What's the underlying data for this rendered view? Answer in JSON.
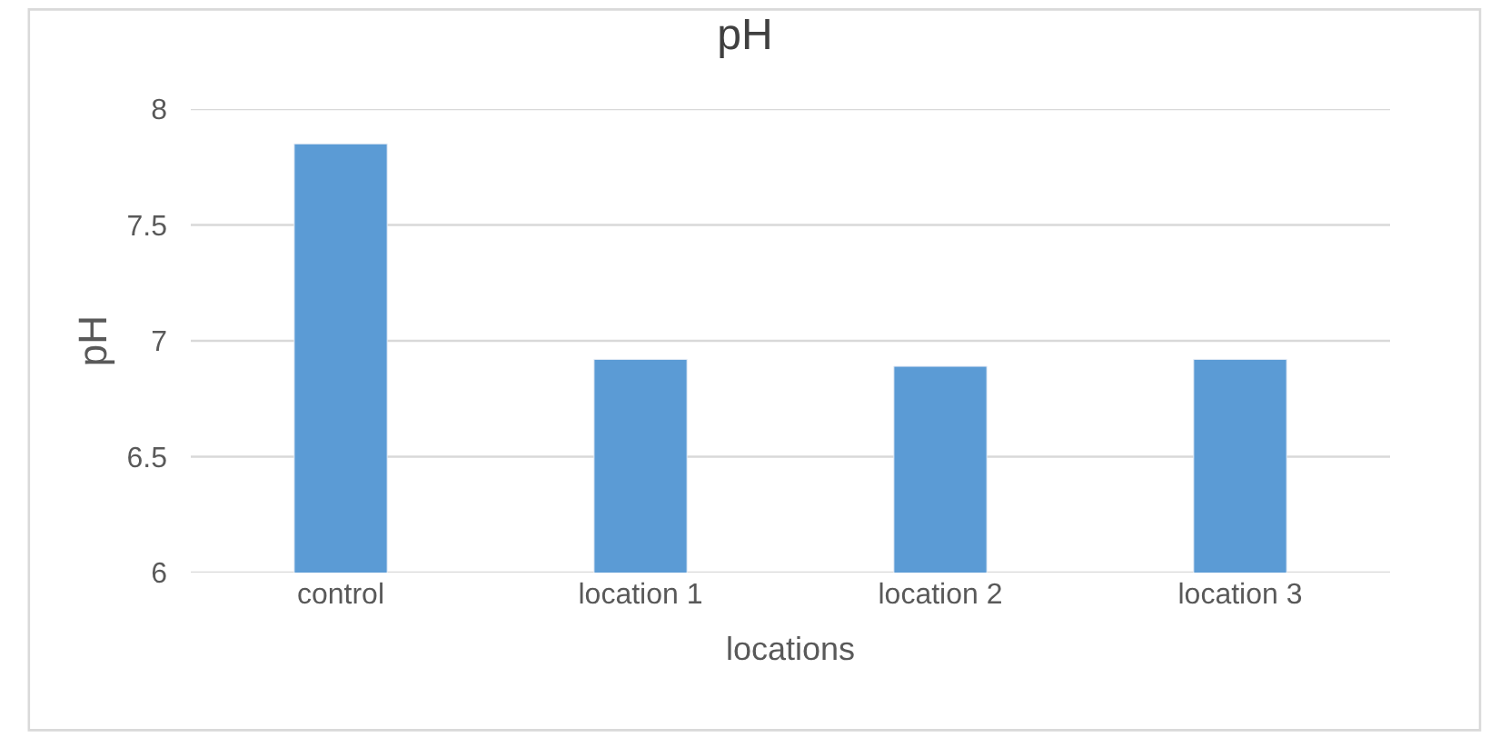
{
  "chart_data": {
    "type": "bar",
    "title": "pH",
    "xlabel": "locations",
    "ylabel": "pH",
    "categories": [
      "control",
      "location 1",
      "location 2",
      "location 3"
    ],
    "values": [
      7.85,
      6.92,
      6.89,
      6.92
    ],
    "color": "#5b9bd5",
    "ylim": [
      6,
      8
    ],
    "yticks": [
      6,
      6.5,
      7,
      7.5,
      8
    ],
    "grid": "y"
  }
}
